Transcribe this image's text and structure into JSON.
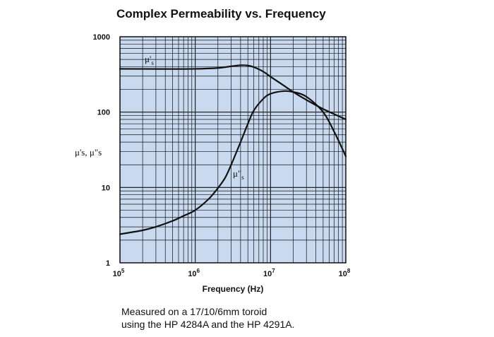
{
  "chart_data": {
    "type": "line",
    "title": "Complex Permeability vs. Frequency",
    "xlabel": "Frequency (Hz)",
    "ylabel": "μ's, μ\"s",
    "x_scale": "log",
    "y_scale": "log",
    "xlim": [
      100000,
      100000000
    ],
    "ylim": [
      1,
      1000
    ],
    "x_ticks": [
      {
        "value": 100000,
        "base": "10",
        "exp": "5"
      },
      {
        "value": 1000000,
        "base": "10",
        "exp": "6"
      },
      {
        "value": 10000000,
        "base": "10",
        "exp": "7"
      },
      {
        "value": 100000000,
        "base": "10",
        "exp": "8"
      }
    ],
    "y_ticks": [
      {
        "value": 1,
        "label": "1"
      },
      {
        "value": 10,
        "label": "10"
      },
      {
        "value": 100,
        "label": "100"
      },
      {
        "value": 1000,
        "label": "1000"
      }
    ],
    "grid": true,
    "plot_background": "#c9daf0",
    "grid_color": "#111111",
    "line_color": "#111111",
    "series": [
      {
        "name": "μ's",
        "label_base": "μ'",
        "label_sub": "s",
        "x": [
          100000,
          200000,
          500000,
          1000000,
          2000000,
          3000000,
          4000000,
          5000000,
          6000000,
          8000000,
          10000000,
          15000000,
          20000000,
          30000000,
          50000000,
          100000000
        ],
        "y": [
          375,
          374,
          373,
          375,
          385,
          405,
          418,
          415,
          395,
          345,
          295,
          225,
          185,
          145,
          110,
          80
        ]
      },
      {
        "name": "μ\"s",
        "label_base": "μ\"",
        "label_sub": "s",
        "x": [
          100000,
          200000,
          300000,
          500000,
          700000,
          1000000,
          1500000,
          2000000,
          2500000,
          3000000,
          4000000,
          5000000,
          6000000,
          8000000,
          10000000,
          15000000,
          20000000,
          30000000,
          50000000,
          70000000,
          100000000
        ],
        "y": [
          2.4,
          2.7,
          3.0,
          3.6,
          4.2,
          5.0,
          7.0,
          9.8,
          13.5,
          20,
          40,
          70,
          105,
          150,
          175,
          190,
          185,
          160,
          100,
          55,
          26
        ]
      }
    ]
  },
  "note": {
    "line1": "Measured on a 17/10/6mm toroid",
    "line2": "using the HP 4284A and the HP 4291A."
  }
}
